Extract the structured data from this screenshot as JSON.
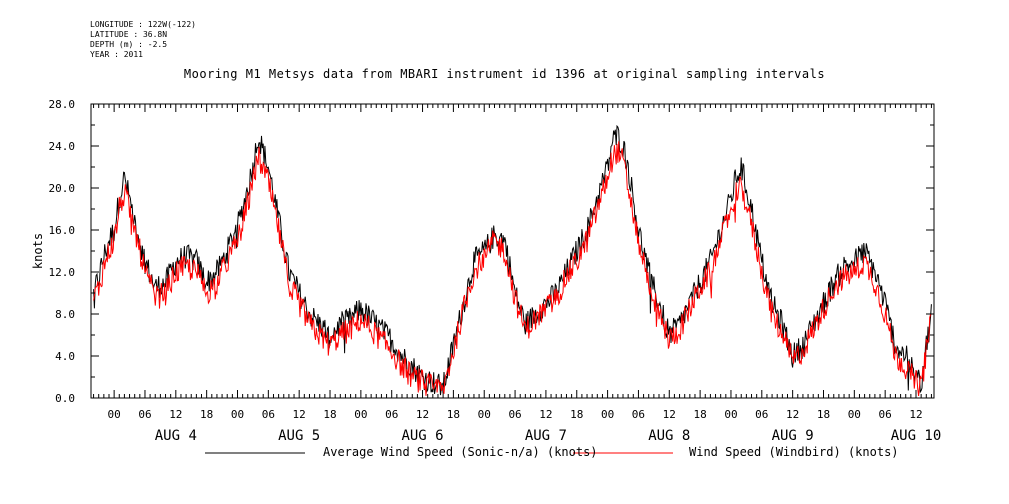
{
  "header": {
    "longitude": "LONGITUDE : 122W(-122)",
    "latitude": "LATITUDE : 36.8N",
    "depth": "DEPTH (m) : -2.5",
    "year": "YEAR : 2011"
  },
  "chart_data": {
    "type": "line",
    "title": "Mooring M1 Metsys data from MBARI instrument id 1396 at original sampling intervals",
    "xlabel": "",
    "ylabel": "knots",
    "ylim": [
      0,
      28
    ],
    "xlim_hours": [
      -4.5,
      159.5
    ],
    "y_tick_labels": [
      "0.0",
      "4.0",
      "8.0",
      "12.0",
      "16.0",
      "20.0",
      "24.0",
      "28.0"
    ],
    "x_tick_labels": [
      "00",
      "06",
      "12",
      "18",
      "00",
      "06",
      "12",
      "18",
      "00",
      "06",
      "12",
      "18",
      "00",
      "06",
      "12",
      "18",
      "00",
      "06",
      "12",
      "18",
      "00",
      "06",
      "12",
      "18",
      "00",
      "06",
      "12",
      "18"
    ],
    "x_tick_hours": [
      0,
      6,
      12,
      18,
      24,
      30,
      36,
      42,
      48,
      54,
      60,
      66,
      72,
      78,
      84,
      90,
      96,
      102,
      108,
      114,
      120,
      126,
      132,
      138,
      144,
      150,
      156
    ],
    "day_labels": [
      "AUG  4",
      "AUG  5",
      "AUG  6",
      "AUG  7",
      "AUG  8",
      "AUG  9",
      "AUG 10"
    ],
    "day_label_hours": [
      12,
      36,
      60,
      84,
      108,
      132,
      156
    ],
    "grid": false,
    "legend_position": "bottom",
    "series": [
      {
        "name": "Average Wind Speed (Sonic-n/a) (knots)",
        "color": "#000000",
        "hours": [
          -4,
          -3,
          -2,
          -1,
          0,
          1,
          2,
          3,
          4,
          6,
          8,
          10,
          12,
          14,
          16,
          18,
          20,
          22,
          24,
          25,
          26,
          27,
          28,
          30,
          32,
          34,
          36,
          38,
          40,
          42,
          44,
          46,
          48,
          50,
          52,
          54,
          56,
          58,
          60,
          62,
          64,
          66,
          68,
          70,
          72,
          74,
          76,
          78,
          80,
          82,
          84,
          86,
          88,
          90,
          92,
          94,
          96,
          97,
          98,
          99,
          100,
          102,
          104,
          106,
          108,
          110,
          112,
          114,
          116,
          118,
          120,
          121,
          122,
          123,
          124,
          126,
          128,
          130,
          132,
          134,
          136,
          138,
          140,
          142,
          144,
          146,
          148,
          150,
          152,
          154,
          156,
          157,
          158,
          159
        ],
        "values": [
          10,
          11.5,
          13.5,
          15,
          16,
          19,
          21,
          19,
          17,
          13,
          10.5,
          11,
          13,
          13.5,
          13,
          11,
          12,
          14,
          16.5,
          18,
          20,
          22,
          25,
          22,
          17,
          12,
          10,
          8,
          7,
          6,
          7,
          7.5,
          8.5,
          7.5,
          6.5,
          5.5,
          4,
          3,
          2,
          1.5,
          1,
          5,
          9,
          13,
          14,
          15.5,
          15,
          10,
          7,
          8,
          9,
          10,
          12,
          14,
          16,
          19,
          22,
          24.5,
          25,
          24,
          22,
          16,
          12,
          9,
          6,
          7,
          9,
          11,
          13,
          16,
          19,
          21,
          22,
          20,
          18,
          13,
          9,
          7,
          4,
          5,
          7,
          9,
          11,
          12.5,
          13,
          14,
          12,
          9,
          5,
          4,
          2,
          1.5,
          5,
          8
        ],
        "peaks": {
          "AUG 4 01:00": 22,
          "AUG 5 02:00": 26.2,
          "AUG 7 05:00": 17.5,
          "AUG 8 01:00": 25.8,
          "AUG 9 03:00": 23,
          "AUG 10 04:00": 15.5
        }
      },
      {
        "name": "Wind Speed (Windbird) (knots)",
        "color": "#ff0000",
        "hours": [
          -4,
          -3,
          -2,
          -1,
          0,
          1,
          2,
          3,
          4,
          6,
          8,
          10,
          12,
          14,
          16,
          18,
          20,
          22,
          24,
          25,
          26,
          27,
          28,
          30,
          32,
          34,
          36,
          38,
          40,
          42,
          44,
          46,
          48,
          50,
          52,
          54,
          56,
          58,
          60,
          62,
          64,
          66,
          68,
          70,
          72,
          74,
          76,
          78,
          80,
          82,
          84,
          86,
          88,
          90,
          92,
          94,
          96,
          97,
          98,
          99,
          100,
          102,
          104,
          106,
          108,
          110,
          112,
          114,
          116,
          118,
          120,
          121,
          122,
          123,
          124,
          126,
          128,
          130,
          132,
          134,
          136,
          138,
          140,
          142,
          144,
          146,
          148,
          150,
          152,
          154,
          156,
          157,
          158,
          159
        ],
        "values": [
          9.5,
          10.5,
          12.5,
          14,
          15,
          18,
          19.5,
          18,
          16,
          12,
          9.5,
          10,
          12,
          12.5,
          12,
          10,
          11,
          13,
          15,
          16.5,
          18.5,
          20.5,
          23,
          20.5,
          16,
          11,
          9,
          7,
          6,
          5,
          6,
          6.5,
          7.5,
          6.5,
          5.5,
          4.5,
          3,
          2,
          1.5,
          1,
          0.8,
          4.5,
          8.5,
          12,
          13.5,
          15,
          14,
          9.5,
          6.5,
          7.5,
          8.5,
          9.5,
          11.5,
          13,
          15,
          18,
          21,
          23,
          23.5,
          22.5,
          20,
          15,
          11,
          8,
          5.5,
          6.5,
          8.5,
          10.5,
          12,
          15,
          18,
          19.5,
          20,
          18.5,
          16.5,
          12,
          8,
          6,
          3.5,
          4.5,
          6.5,
          8.5,
          10.5,
          11.5,
          12,
          13,
          11,
          8,
          4,
          3,
          1.5,
          1,
          4.5,
          7.5
        ]
      }
    ]
  }
}
